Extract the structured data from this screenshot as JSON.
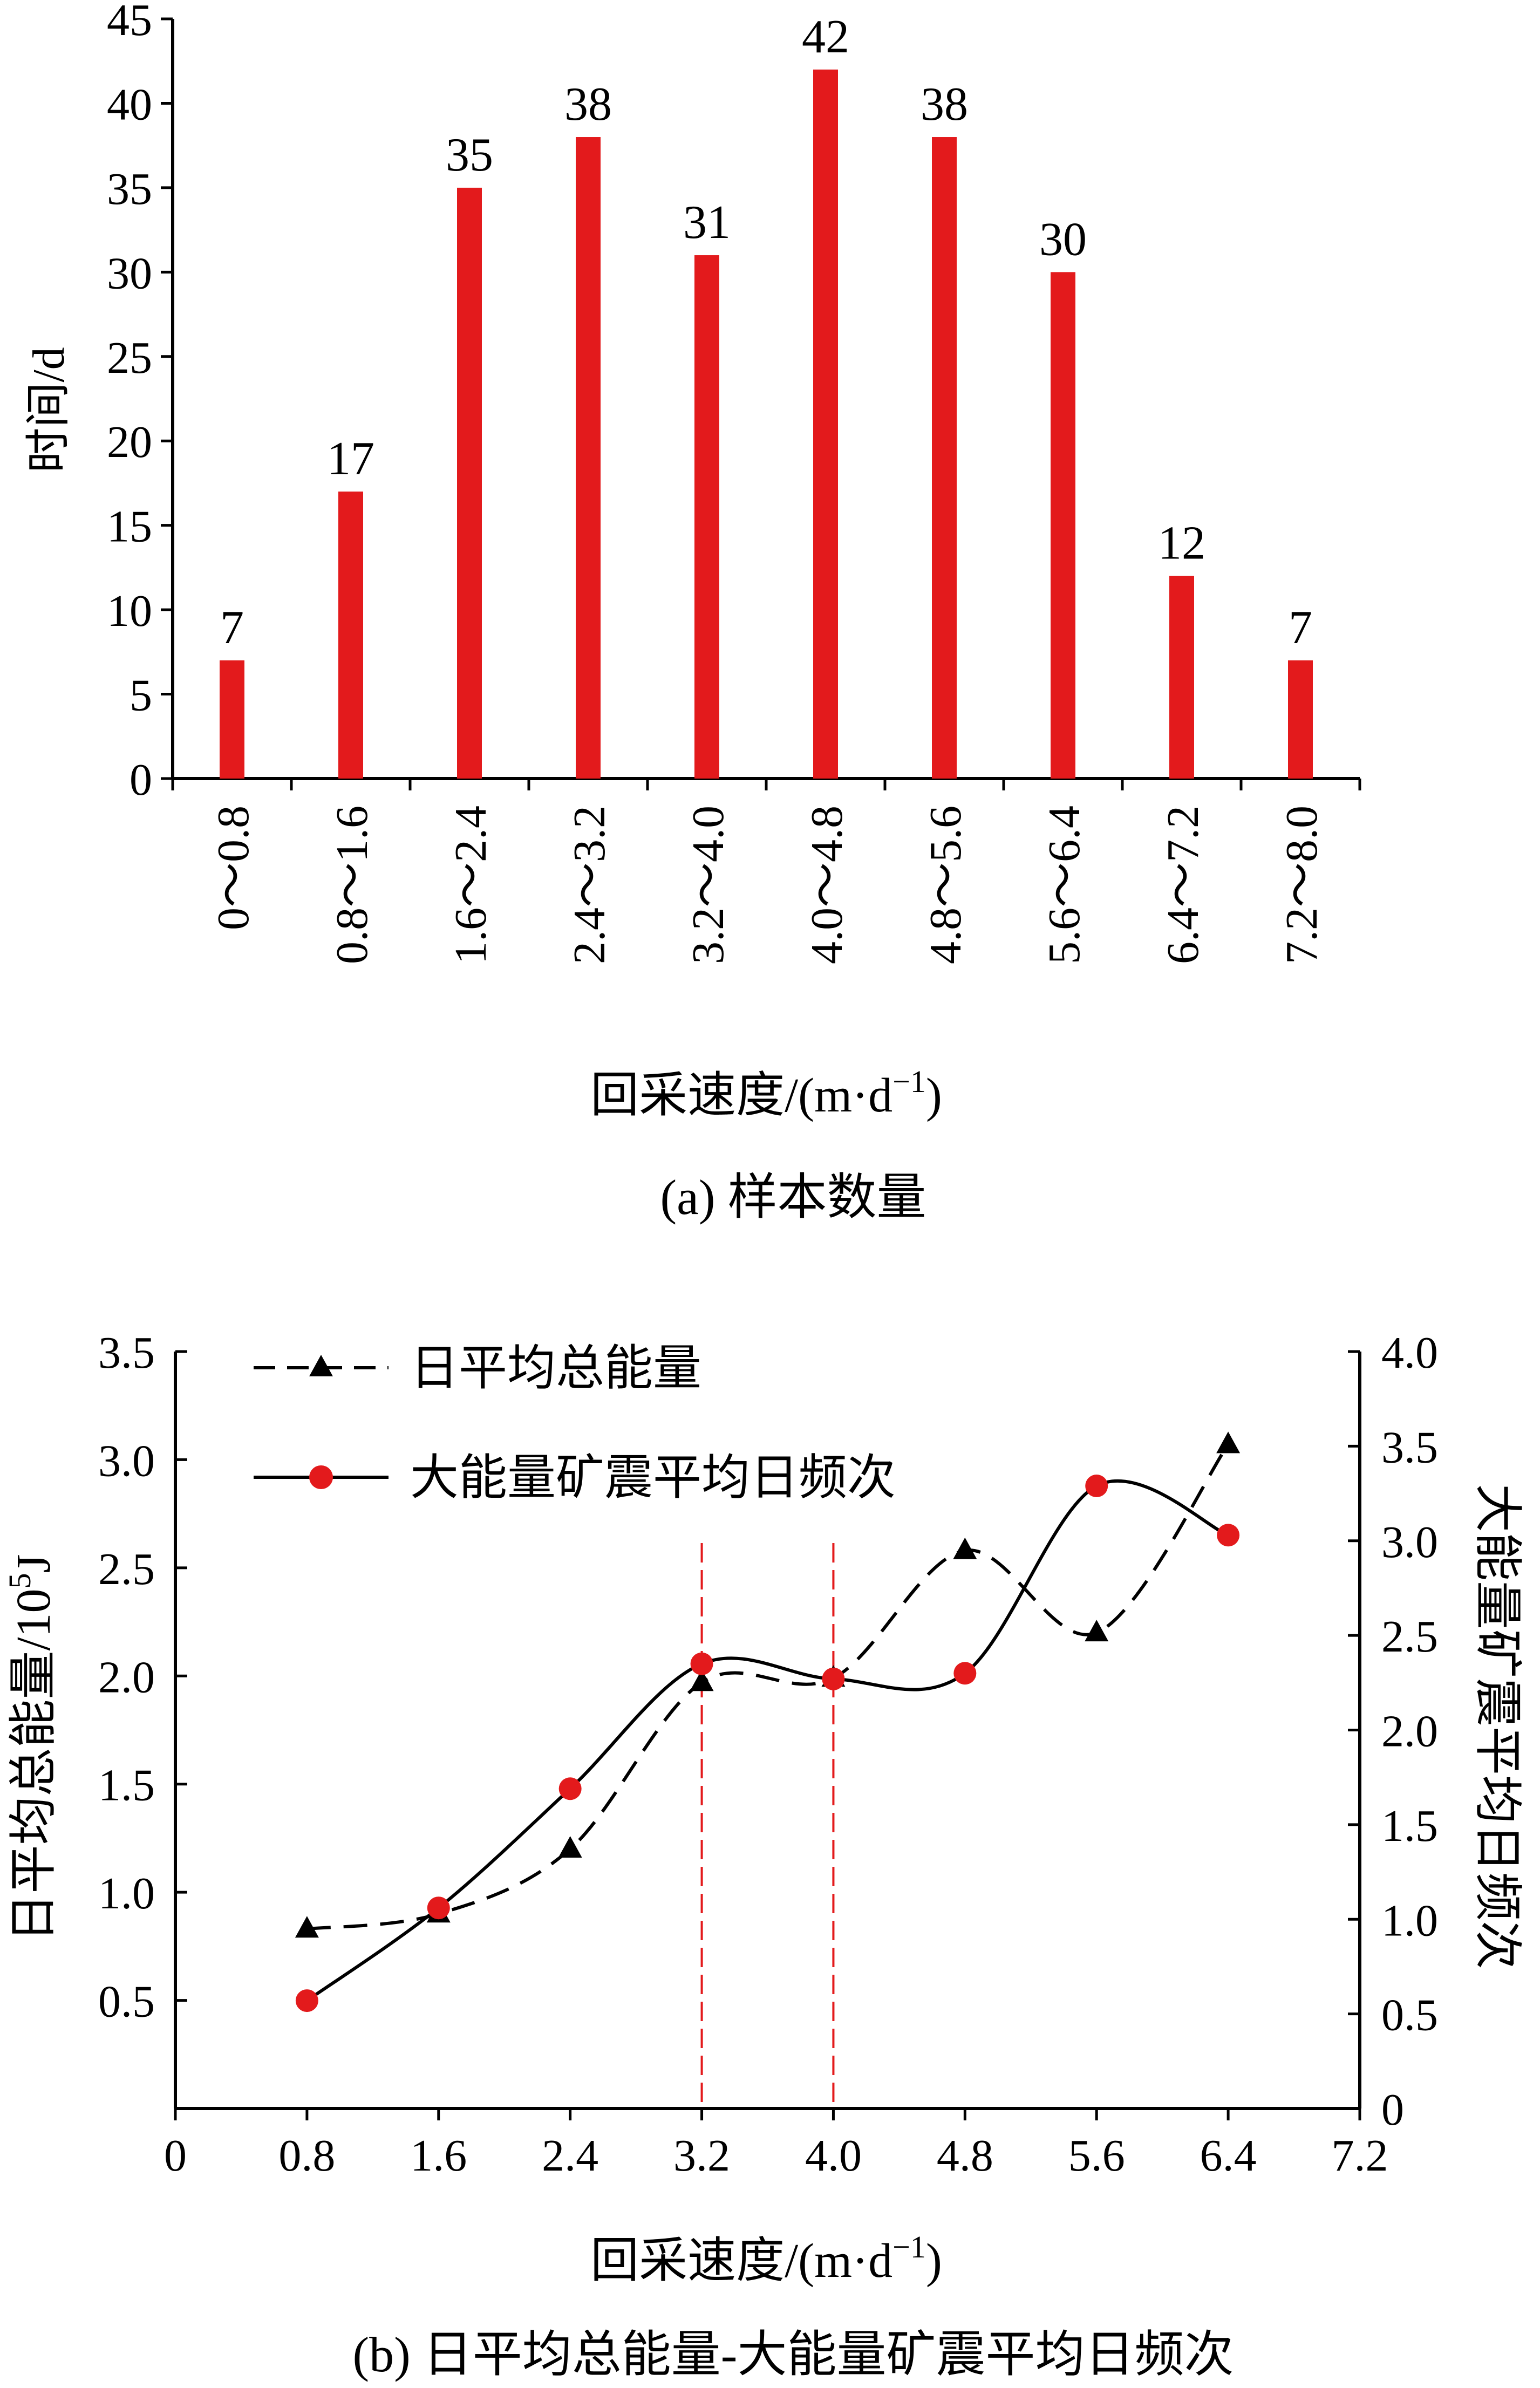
{
  "colors": {
    "bar": "#e31a1c",
    "axis": "#000000",
    "energy_line": "#000000",
    "freq_marker": "#e31a1c",
    "guide": "#e31a1c"
  },
  "chart_data": [
    {
      "type": "bar",
      "caption": "(a)  样本数量",
      "title": "",
      "xlabel": "回采速度/(m·d",
      "xlabel_sup": "−1",
      "xlabel_close": ")",
      "ylabel": "时间/d",
      "ylim": [
        0,
        45
      ],
      "yticks": [
        0,
        5,
        10,
        15,
        20,
        25,
        30,
        35,
        40,
        45
      ],
      "categories": [
        "0～0.8",
        "0.8～1.6",
        "1.6～2.4",
        "2.4～3.2",
        "3.2～4.0",
        "4.0～4.8",
        "4.8～5.6",
        "5.6～6.4",
        "6.4～7.2",
        "7.2～8.0"
      ],
      "values": [
        7,
        17,
        35,
        38,
        31,
        42,
        38,
        30,
        12,
        7
      ],
      "grid": false
    },
    {
      "type": "line",
      "caption": "(b)  日平均总能量-大能量矿震平均日频次",
      "title": "",
      "xlabel": "回采速度/(m·d",
      "xlabel_sup": "−1",
      "xlabel_close": ")",
      "ylabel_left": "日平均总能量/10",
      "ylabel_left_sup": "5",
      "ylabel_left_unit": "J",
      "ylabel_right": "大能量矿震平均日频次",
      "xlim": [
        0,
        7.2
      ],
      "xticks": [
        "0",
        "0.8",
        "1.6",
        "2.4",
        "3.2",
        "4.0",
        "4.8",
        "5.6",
        "6.4",
        "7.2"
      ],
      "ylim_left": [
        0,
        3.5
      ],
      "yticks_left": [
        "0.5",
        "1.0",
        "1.5",
        "2.0",
        "2.5",
        "3.0",
        "3.5"
      ],
      "ylim_right": [
        0,
        4.0
      ],
      "yticks_right": [
        "0",
        "0.5",
        "1.0",
        "1.5",
        "2.0",
        "2.5",
        "3.0",
        "3.5",
        "4.0"
      ],
      "x": [
        0.8,
        1.6,
        2.4,
        3.2,
        4.0,
        4.8,
        5.6,
        6.4
      ],
      "series": [
        {
          "name": "日平均总能量",
          "axis": "left",
          "style": "dashed",
          "marker": "triangle",
          "values": [
            0.83,
            0.9,
            1.2,
            1.97,
            1.99,
            2.58,
            2.2,
            3.07
          ]
        },
        {
          "name": "大能量矿震平均日频次",
          "axis": "right",
          "style": "solid",
          "marker": "circle",
          "values": [
            0.57,
            1.06,
            1.69,
            2.35,
            2.27,
            2.3,
            3.29,
            3.03
          ]
        }
      ],
      "reference_lines_x": [
        3.2,
        4.0
      ],
      "legend": "top-left",
      "grid": false
    }
  ]
}
